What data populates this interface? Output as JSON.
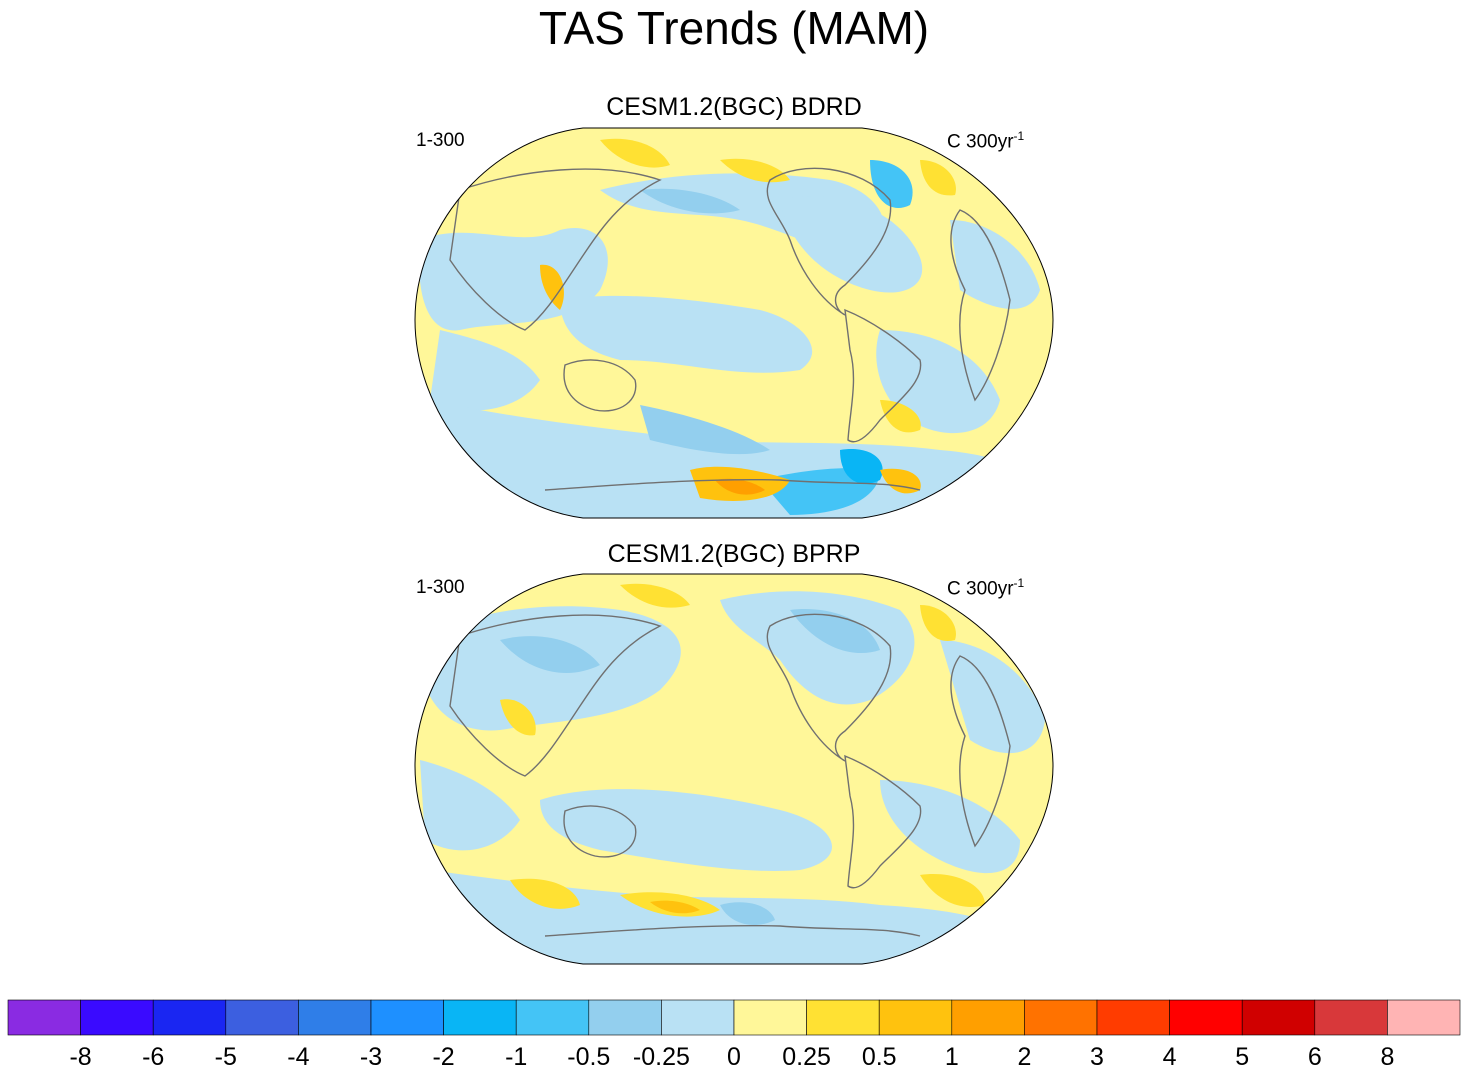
{
  "chart_data": [
    {
      "type": "heatmap",
      "title": "CESM1.2(BGC) BDRD",
      "left_label": "1-300",
      "right_label": "C 300yr",
      "right_label_exponent": "-1",
      "projection": "Robinson-like global map",
      "dominant_levels": [
        "-0.5",
        "-0.25",
        "0",
        "0.25",
        "0.5",
        "1"
      ]
    },
    {
      "type": "heatmap",
      "title": "CESM1.2(BGC) BPRP",
      "left_label": "1-300",
      "right_label": "C 300yr",
      "right_label_exponent": "-1",
      "projection": "Robinson-like global map",
      "dominant_levels": [
        "-0.5",
        "-0.25",
        "0",
        "0.25",
        "0.5"
      ]
    }
  ],
  "figure": {
    "title": "TAS Trends (MAM)"
  },
  "colorbar": {
    "colors": [
      "#8a2be2",
      "#3a0aff",
      "#1a26f2",
      "#3c5fe0",
      "#2f7ee8",
      "#1e90ff",
      "#09b5f5",
      "#44c4f6",
      "#93cfee",
      "#b9e1f4",
      "#fff799",
      "#ffe133",
      "#ffc20e",
      "#ff9f00",
      "#ff7200",
      "#ff3c00",
      "#ff0000",
      "#d00000",
      "#d8383a",
      "#ffb4b4"
    ],
    "tick_labels": [
      "-8",
      "-6",
      "-5",
      "-4",
      "-3",
      "-2",
      "-1",
      "-0.5",
      "-0.25",
      "0",
      "0.25",
      "0.5",
      "1",
      "2",
      "3",
      "4",
      "5",
      "6",
      "8"
    ]
  }
}
